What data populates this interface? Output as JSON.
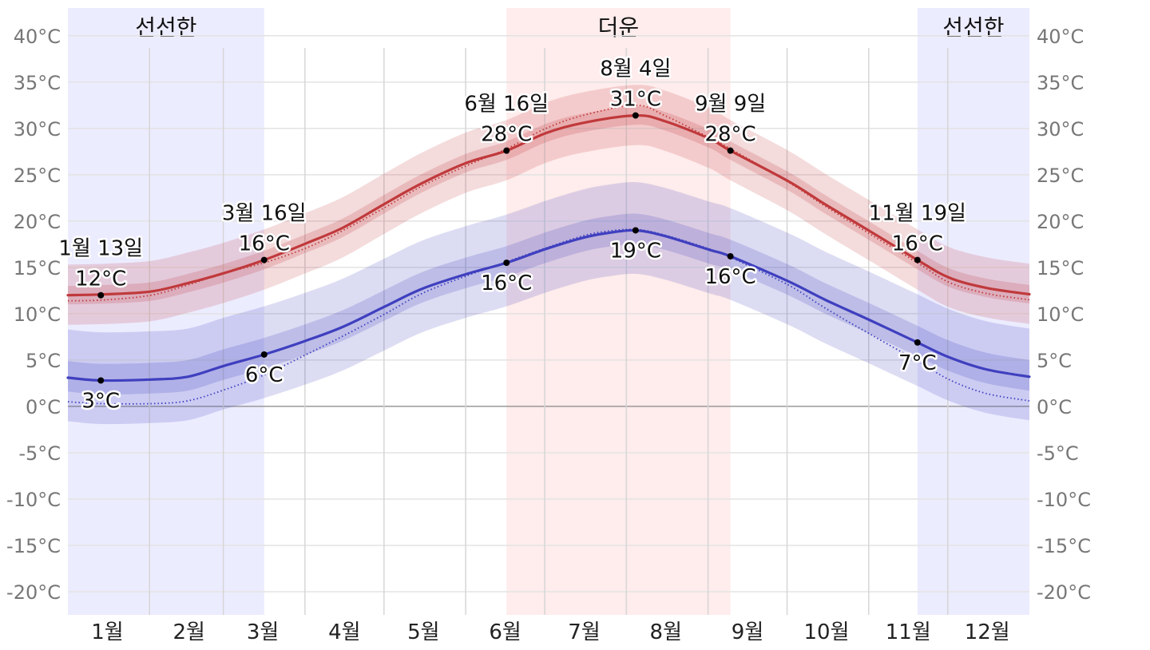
{
  "chart_data": {
    "type": "line",
    "unit": "°C",
    "ylim": [
      -22.5,
      43
    ],
    "yticks": [
      40,
      35,
      30,
      25,
      20,
      15,
      10,
      5,
      0,
      -5,
      -10,
      -15,
      -20
    ],
    "ytick_labels": [
      "40°C",
      "35°C",
      "30°C",
      "25°C",
      "20°C",
      "15°C",
      "10°C",
      "5°C",
      "0°C",
      "-5°C",
      "-10°C",
      "-15°C",
      "-20°C"
    ],
    "months": [
      "1월",
      "2월",
      "3월",
      "4월",
      "5월",
      "6월",
      "7월",
      "8월",
      "9월",
      "10월",
      "11월",
      "12월"
    ],
    "seasons": [
      {
        "label": "선선한",
        "start": "01-01",
        "end": "03-16",
        "color": "#ececff",
        "show_label": true
      },
      {
        "label": "더운",
        "start": "06-16",
        "end": "09-09",
        "color": "#ffecec",
        "show_label": true
      },
      {
        "label": "선선한",
        "start": "11-19",
        "end": "12-31",
        "color": "#ececff",
        "show_label": true
      }
    ],
    "series": [
      {
        "role": "high",
        "color": "#c0393b",
        "days": [
          "01-01",
          "01-15",
          "02-01",
          "02-15",
          "03-01",
          "03-16",
          "04-01",
          "04-15",
          "05-01",
          "05-15",
          "06-01",
          "06-16",
          "07-01",
          "07-15",
          "08-04",
          "08-15",
          "09-01",
          "09-09",
          "10-01",
          "10-15",
          "11-01",
          "11-19",
          "12-01",
          "12-15",
          "12-31"
        ],
        "values": [
          12,
          12.1,
          12.4,
          13.3,
          14.4,
          15.8,
          17.6,
          19.3,
          21.9,
          24.1,
          26.3,
          27.6,
          29.5,
          30.6,
          31.4,
          30.8,
          28.9,
          27.6,
          24.3,
          21.8,
          18.9,
          15.8,
          13.9,
          12.8,
          12.1
        ],
        "normal": [
          11.4,
          11.5,
          12.0,
          13.1,
          14.4,
          15.5,
          17.1,
          19.0,
          21.5,
          23.8,
          26.0,
          27.8,
          30.0,
          31.4,
          32.5,
          31.4,
          29.0,
          27.8,
          24.2,
          21.6,
          18.6,
          15.5,
          13.4,
          12.2,
          11.5
        ],
        "inner_band": [
          [
            11,
            13
          ],
          [
            11.1,
            13.1
          ],
          [
            11.4,
            13.4
          ],
          [
            12.3,
            14.3
          ],
          [
            13.4,
            15.4
          ],
          [
            14.8,
            16.8
          ],
          [
            16.6,
            18.6
          ],
          [
            18.3,
            20.3
          ],
          [
            20.9,
            22.9
          ],
          [
            23.1,
            25.1
          ],
          [
            25.3,
            27.3
          ],
          [
            26.6,
            28.6
          ],
          [
            28.5,
            30.5
          ],
          [
            29.6,
            31.6
          ],
          [
            30.4,
            32.4
          ],
          [
            29.8,
            31.8
          ],
          [
            27.9,
            29.9
          ],
          [
            26.6,
            28.6
          ],
          [
            23.3,
            25.3
          ],
          [
            20.8,
            22.8
          ],
          [
            17.9,
            19.9
          ],
          [
            14.8,
            16.8
          ],
          [
            12.9,
            14.9
          ],
          [
            11.8,
            13.8
          ],
          [
            11.1,
            13.1
          ]
        ],
        "outer_band": [
          [
            8.8,
            15.3
          ],
          [
            8.9,
            15.4
          ],
          [
            9.2,
            15.7
          ],
          [
            10.1,
            16.6
          ],
          [
            11.2,
            17.7
          ],
          [
            12.6,
            19.1
          ],
          [
            14.4,
            20.9
          ],
          [
            16.1,
            22.6
          ],
          [
            18.7,
            25.2
          ],
          [
            20.9,
            27.4
          ],
          [
            23.1,
            29.6
          ],
          [
            24.4,
            30.9
          ],
          [
            26.3,
            32.8
          ],
          [
            27.4,
            33.9
          ],
          [
            28.2,
            34.7
          ],
          [
            27.6,
            34.1
          ],
          [
            25.7,
            32.2
          ],
          [
            24.4,
            30.9
          ],
          [
            21.1,
            27.6
          ],
          [
            18.6,
            25.1
          ],
          [
            15.7,
            22.2
          ],
          [
            12.6,
            19.1
          ],
          [
            10.7,
            17.2
          ],
          [
            9.6,
            16.1
          ],
          [
            8.9,
            15.4
          ]
        ]
      },
      {
        "role": "low",
        "color": "#3f3fbf",
        "days": [
          "01-01",
          "01-13",
          "02-01",
          "02-15",
          "03-01",
          "03-16",
          "04-01",
          "04-15",
          "05-01",
          "05-15",
          "06-01",
          "06-16",
          "07-01",
          "07-15",
          "07-24",
          "08-04",
          "08-15",
          "09-01",
          "09-09",
          "10-01",
          "10-15",
          "11-01",
          "11-19",
          "12-01",
          "12-15",
          "12-31"
        ],
        "values": [
          3.1,
          2.8,
          2.9,
          3.2,
          4.4,
          5.6,
          7.1,
          8.6,
          10.8,
          12.7,
          14.3,
          15.5,
          17.0,
          18.2,
          18.7,
          19.0,
          18.4,
          16.9,
          16.2,
          13.5,
          11.5,
          9.3,
          6.9,
          5.3,
          4.0,
          3.2
        ],
        "normal": [
          0.5,
          0.3,
          0.3,
          0.6,
          1.8,
          3.4,
          5.6,
          7.6,
          10.0,
          12.2,
          14.1,
          15.6,
          17.1,
          18.4,
          18.9,
          19.1,
          18.5,
          17.0,
          16.1,
          13.1,
          10.6,
          7.8,
          4.9,
          2.9,
          1.4,
          0.6
        ],
        "inner_band": [
          [
            1.6,
            4.9
          ],
          [
            1.3,
            4.6
          ],
          [
            1.4,
            4.7
          ],
          [
            1.7,
            5.0
          ],
          [
            2.9,
            6.2
          ],
          [
            4.1,
            7.4
          ],
          [
            5.6,
            8.9
          ],
          [
            7.1,
            10.4
          ],
          [
            9.3,
            12.6
          ],
          [
            11.2,
            14.5
          ],
          [
            12.8,
            16.1
          ],
          [
            14.0,
            17.3
          ],
          [
            15.5,
            18.8
          ],
          [
            16.7,
            20.0
          ],
          [
            17.2,
            20.5
          ],
          [
            17.5,
            20.8
          ],
          [
            16.9,
            20.2
          ],
          [
            15.4,
            18.7
          ],
          [
            14.7,
            18.0
          ],
          [
            12.0,
            15.3
          ],
          [
            10.0,
            13.3
          ],
          [
            7.8,
            11.1
          ],
          [
            5.4,
            8.7
          ],
          [
            3.8,
            7.1
          ],
          [
            2.5,
            5.8
          ],
          [
            1.7,
            5.0
          ]
        ],
        "outer_band": [
          [
            -1.6,
            8.3
          ],
          [
            -1.9,
            8.0
          ],
          [
            -1.8,
            8.1
          ],
          [
            -1.5,
            8.4
          ],
          [
            -0.3,
            9.6
          ],
          [
            0.9,
            10.8
          ],
          [
            2.4,
            12.3
          ],
          [
            3.9,
            13.8
          ],
          [
            6.1,
            16.0
          ],
          [
            8.0,
            17.9
          ],
          [
            9.6,
            19.5
          ],
          [
            10.8,
            20.7
          ],
          [
            12.3,
            22.2
          ],
          [
            13.5,
            23.4
          ],
          [
            14.0,
            23.9
          ],
          [
            14.3,
            24.2
          ],
          [
            13.7,
            23.6
          ],
          [
            12.2,
            22.1
          ],
          [
            11.5,
            21.4
          ],
          [
            8.8,
            18.7
          ],
          [
            6.8,
            16.7
          ],
          [
            4.6,
            14.5
          ],
          [
            2.2,
            12.1
          ],
          [
            0.6,
            10.5
          ],
          [
            -0.7,
            9.2
          ],
          [
            -1.5,
            8.4
          ]
        ]
      }
    ],
    "annotations": [
      {
        "day": "01-13",
        "series": "high",
        "value": 12,
        "date_label": "1월 13일",
        "value_label": "12°C",
        "pos": "above"
      },
      {
        "day": "03-16",
        "series": "high",
        "value": 15.8,
        "date_label": "3월 16일",
        "value_label": "16°C",
        "pos": "above"
      },
      {
        "day": "06-16",
        "series": "high",
        "value": 27.6,
        "date_label": "6월 16일",
        "value_label": "28°C",
        "pos": "above"
      },
      {
        "day": "08-04",
        "series": "high",
        "value": 31.4,
        "date_label": "8월 4일",
        "value_label": "31°C",
        "pos": "above"
      },
      {
        "day": "09-09",
        "series": "high",
        "value": 27.6,
        "date_label": "9월 9일",
        "value_label": "28°C",
        "pos": "above"
      },
      {
        "day": "11-19",
        "series": "high",
        "value": 15.8,
        "date_label": "11월 19일",
        "value_label": "16°C",
        "pos": "above"
      },
      {
        "day": "01-13",
        "series": "low",
        "value": 2.8,
        "date_label": "",
        "value_label": "3°C",
        "pos": "below"
      },
      {
        "day": "03-16",
        "series": "low",
        "value": 5.6,
        "date_label": "",
        "value_label": "6°C",
        "pos": "below"
      },
      {
        "day": "06-16",
        "series": "low",
        "value": 15.5,
        "date_label": "",
        "value_label": "16°C",
        "pos": "below"
      },
      {
        "day": "08-04",
        "series": "low",
        "value": 19.0,
        "date_label": "",
        "value_label": "19°C",
        "pos": "below"
      },
      {
        "day": "09-09",
        "series": "low",
        "value": 16.2,
        "date_label": "",
        "value_label": "16°C",
        "pos": "below"
      },
      {
        "day": "11-19",
        "series": "low",
        "value": 6.9,
        "date_label": "",
        "value_label": "7°C",
        "pos": "below"
      }
    ]
  }
}
